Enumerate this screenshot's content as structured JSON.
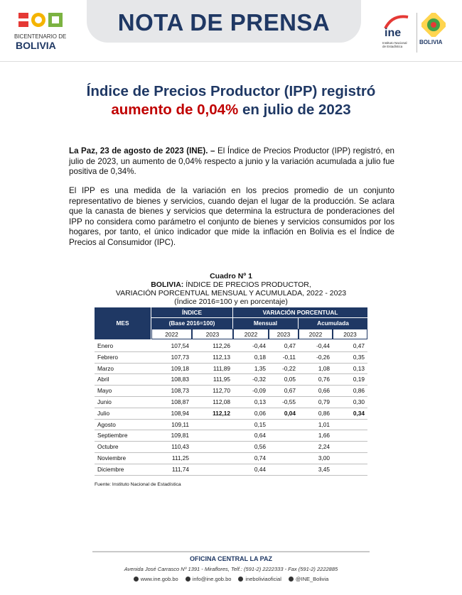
{
  "header": {
    "logo_left": {
      "line1": "BICENTENARIO DE",
      "line2": "BOLIVIA"
    },
    "title": "NOTA DE PRENSA",
    "logo_ine": {
      "name": "ine",
      "subtitle": "Instituto Nacional de Estadística"
    },
    "logo_right": {
      "name": "BOLIVIA"
    }
  },
  "headline": {
    "line1": "Índice de Precios Productor (IPP) registró",
    "highlight": "aumento de 0,04%",
    "rest": "en julio de 2023"
  },
  "paragraphs": [
    {
      "lead": "La Paz, 23 de agosto de 2023 (INE). –",
      "text": "El Índice de Precios Productor (IPP) registró, en julio de 2023, un aumento de 0,04% respecto a junio y la variación acumulada a julio fue positiva de 0,34%."
    },
    {
      "text": "El IPP es una medida de la variación en los precios promedio de un conjunto representativo de bienes y servicios, cuando dejan el lugar de la producción. Se aclara que la canasta de bienes y servicios que determina la estructura de ponderaciones del IPP no considera como parámetro el conjunto de bienes y servicios consumidos por los hogares, por tanto, el único indicador que mide la inflación en Bolivia es el Índice de Precios al Consumidor (IPC)."
    }
  ],
  "table": {
    "number": "Cuadro Nº 1",
    "title_country": "BOLIVIA:",
    "title_line1": "ÍNDICE DE PRECIOS PRODUCTOR,",
    "title_line2": "VARIACIÓN PORCENTUAL MENSUAL Y ACUMULADA, 2022 - 2023",
    "subtitle": "(Índice 2016=100 y en porcentaje)",
    "headers": {
      "mes": "MES",
      "indice": "ÍNDICE",
      "base": "(Base 2016=100)",
      "variacion": "VARIACIÓN PORCENTUAL",
      "mensual": "Mensual",
      "acumulada": "Acumulada",
      "years": [
        "2022",
        "2023",
        "2022",
        "2023",
        "2022",
        "2023"
      ]
    },
    "rows": [
      {
        "mes": "Enero",
        "ind22": "107,54",
        "ind23": "112,26",
        "men22": "-0,44",
        "men23": "0,47",
        "acu22": "-0,44",
        "acu23": "0,47"
      },
      {
        "mes": "Febrero",
        "ind22": "107,73",
        "ind23": "112,13",
        "men22": "0,18",
        "men23": "-0,11",
        "acu22": "-0,26",
        "acu23": "0,35"
      },
      {
        "mes": "Marzo",
        "ind22": "109,18",
        "ind23": "111,89",
        "men22": "1,35",
        "men23": "-0,22",
        "acu22": "1,08",
        "acu23": "0,13"
      },
      {
        "mes": "Abril",
        "ind22": "108,83",
        "ind23": "111,95",
        "men22": "-0,32",
        "men23": "0,05",
        "acu22": "0,76",
        "acu23": "0,19"
      },
      {
        "mes": "Mayo",
        "ind22": "108,73",
        "ind23": "112,70",
        "men22": "-0,09",
        "men23": "0,67",
        "acu22": "0,66",
        "acu23": "0,86"
      },
      {
        "mes": "Junio",
        "ind22": "108,87",
        "ind23": "112,08",
        "men22": "0,13",
        "men23": "-0,55",
        "acu22": "0,79",
        "acu23": "0,30"
      },
      {
        "mes": "Julio",
        "ind22": "108,94",
        "ind23": "112,12",
        "men22": "0,06",
        "men23": "0,04",
        "acu22": "0,86",
        "acu23": "0,34"
      },
      {
        "mes": "Agosto",
        "ind22": "109,11",
        "men22": "0,15",
        "acu22": "1,01"
      },
      {
        "mes": "Septiembre",
        "ind22": "109,81",
        "men22": "0,64",
        "acu22": "1,66"
      },
      {
        "mes": "Octubre",
        "ind22": "110,43",
        "men22": "0,56",
        "acu22": "2,24"
      },
      {
        "mes": "Noviembre",
        "ind22": "111,25",
        "men22": "0,74",
        "acu22": "3,00"
      },
      {
        "mes": "Diciembre",
        "ind22": "111,74",
        "men22": "0,44",
        "acu22": "3,45"
      }
    ],
    "source": "Fuente: Instituto Nacional de Estadística"
  },
  "footer": {
    "office": "OFICINA CENTRAL LA PAZ",
    "address": "Avenida José Carrasco Nº 1391 - Miraflores, Telf.: (591-2) 2222333 - Fax (591-2) 2222885",
    "contacts": [
      "www.ine.gob.bo",
      "info@ine.gob.bo",
      "ineboliviaoficial",
      "@INE_Bolivia"
    ]
  }
}
